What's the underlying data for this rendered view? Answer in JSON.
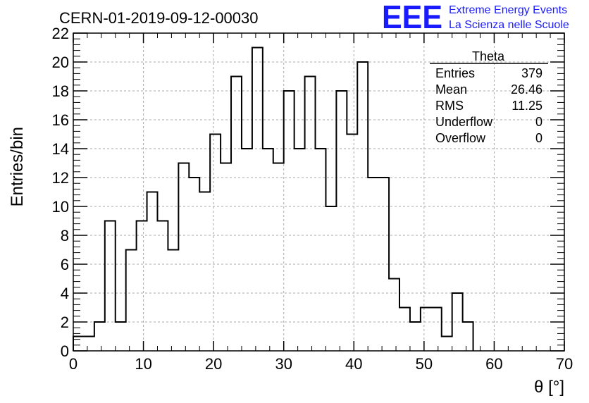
{
  "chart_data": {
    "type": "bar",
    "title": "CERN-01-2019-09-12-00030",
    "xlabel": "θ [°]",
    "ylabel": "Entries/bin",
    "xlim": [
      0,
      70
    ],
    "ylim": [
      0,
      22
    ],
    "grid": true,
    "bin_width": 1.5,
    "x_ticks": [
      "0",
      "10",
      "20",
      "30",
      "40",
      "50",
      "60",
      "70"
    ],
    "y_ticks": [
      "0",
      "2",
      "4",
      "6",
      "8",
      "10",
      "12",
      "14",
      "16",
      "18",
      "20",
      "22"
    ],
    "x": [
      0,
      1.5,
      3,
      4.5,
      6,
      7.5,
      9,
      10.5,
      12,
      13.5,
      15,
      16.5,
      18,
      19.5,
      21,
      22.5,
      24,
      25.5,
      27,
      28.5,
      30,
      31.5,
      33,
      34.5,
      36,
      37.5,
      39,
      40.5,
      42,
      43.5,
      45,
      46.5,
      48,
      49.5,
      51,
      52.5,
      54,
      55.5
    ],
    "values": [
      1,
      1,
      2,
      9,
      2,
      7,
      9,
      11,
      9,
      7,
      13,
      12,
      11,
      15,
      13,
      19,
      14,
      21,
      14,
      13,
      18,
      14,
      19,
      14,
      10,
      18,
      15,
      20,
      12,
      12,
      5,
      3,
      2,
      3,
      3,
      1,
      4,
      2
    ],
    "stats": {
      "title": "Theta",
      "rows": [
        {
          "label": "Entries",
          "value": "379"
        },
        {
          "label": "Mean",
          "value": "26.46"
        },
        {
          "label": "RMS",
          "value": "11.25"
        },
        {
          "label": "Underflow",
          "value": "0"
        },
        {
          "label": "Overflow",
          "value": "0"
        }
      ]
    },
    "legend_position": "top-right"
  },
  "logo": {
    "mark": "EEE",
    "line1": "Extreme Energy Events",
    "line2": "La Scienza nelle Scuole",
    "color": "#1a1aff"
  },
  "colors": {
    "histogram": "#000000",
    "grid": "#aaaaaa"
  }
}
